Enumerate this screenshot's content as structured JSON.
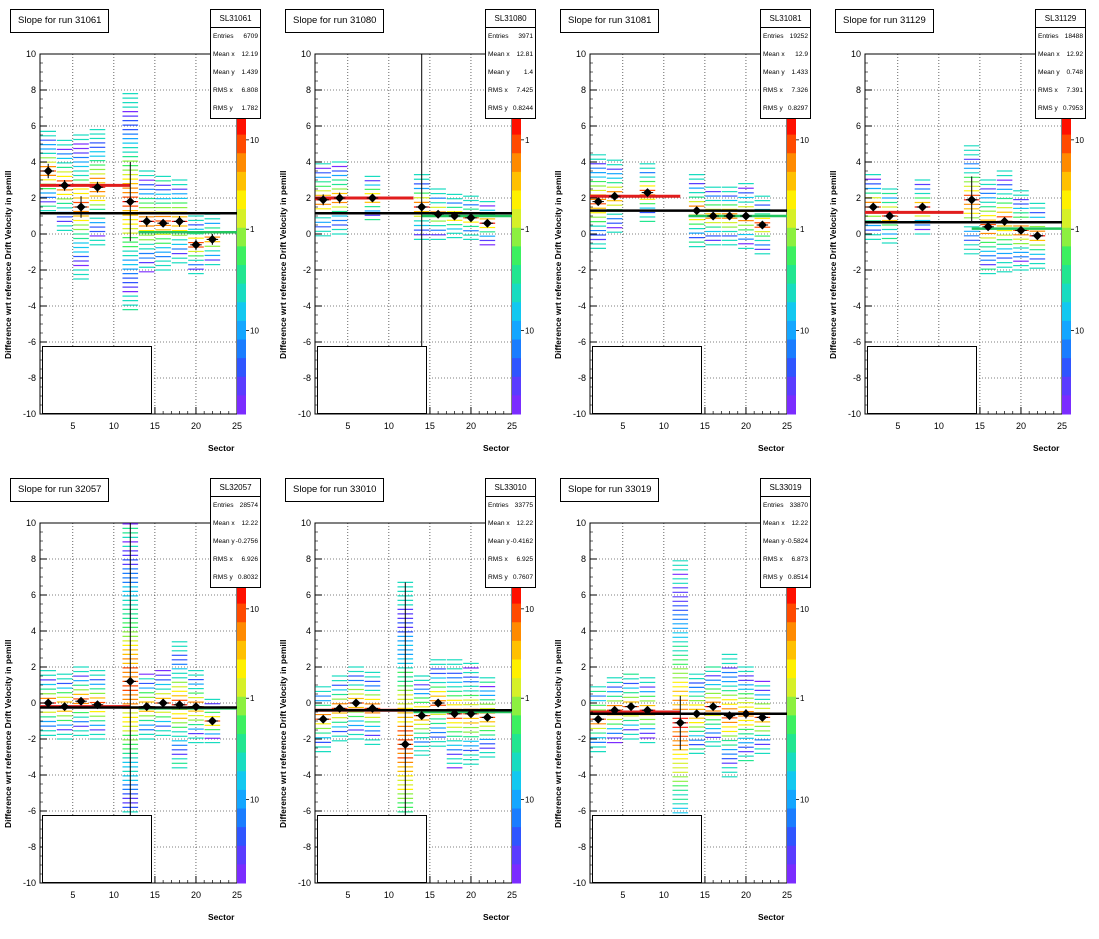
{
  "page": {
    "footer_fragment": ""
  },
  "axis_labels": {
    "y": "Difference wrt reference Drift Velocity in pemill",
    "x": "Sector"
  },
  "colors": {
    "mean_marker": "#000000",
    "fit_black": "#000000",
    "fit_red": "#e11d1d",
    "fit_green": "#22c55e"
  },
  "chart_data": [
    {
      "type": "heatmap",
      "title": "Slope for run 31061",
      "stats": {
        "name": "SL31061",
        "entries": "6709",
        "mean_x": "12.19",
        "mean_y": "1.439",
        "rms_x": "6.808",
        "rms_y": "1.782"
      },
      "xlim": [
        1,
        25
      ],
      "ylim": [
        -10,
        10
      ],
      "xticks": [
        5,
        10,
        15,
        20,
        25
      ],
      "yticks": [
        -10,
        -8,
        -6,
        -4,
        -2,
        0,
        2,
        4,
        6,
        8,
        10
      ],
      "z_ticks": [
        "10",
        "1",
        "10"
      ],
      "sectors": [
        2,
        4,
        6,
        8,
        12,
        14,
        16,
        18,
        20,
        22
      ],
      "mean_y": [
        3.5,
        2.7,
        1.5,
        2.6,
        1.8,
        0.7,
        0.6,
        0.7,
        -0.6,
        -0.3
      ],
      "err_y": [
        0.4,
        0.3,
        0.6,
        0.3,
        2.2,
        0.3,
        0.2,
        0.3,
        0.3,
        0.3
      ],
      "spread": [
        2.2,
        2.5,
        4.0,
        3.2,
        6.0,
        2.8,
        2.6,
        2.3,
        1.6,
        1.4
      ],
      "fit_black": {
        "x": [
          1,
          25
        ],
        "y": [
          1.15,
          1.15
        ]
      },
      "fit_red": {
        "x": [
          1,
          12
        ],
        "y": [
          2.7,
          2.7
        ]
      },
      "fit_green": {
        "x": [
          13,
          25
        ],
        "y": [
          0.1,
          0.1
        ]
      }
    },
    {
      "type": "heatmap",
      "title": "Slope for run 31080",
      "stats": {
        "name": "SL31080",
        "entries": "3971",
        "mean_x": "12.81",
        "mean_y": "1.4",
        "rms_x": "7.425",
        "rms_y": "0.8244"
      },
      "xlim": [
        1,
        25
      ],
      "ylim": [
        -10,
        10
      ],
      "xticks": [
        5,
        10,
        15,
        20,
        25
      ],
      "yticks": [
        -10,
        -8,
        -6,
        -4,
        -2,
        0,
        2,
        4,
        6,
        8,
        10
      ],
      "z_ticks": [
        "1",
        "1",
        "10"
      ],
      "sectors": [
        2,
        4,
        8,
        14,
        16,
        18,
        20,
        22
      ],
      "mean_y": [
        1.9,
        2.0,
        2.0,
        1.5,
        1.1,
        1.0,
        0.9,
        0.6
      ],
      "err_y": [
        0.3,
        0.3,
        0.2,
        8.5,
        0.2,
        0.2,
        0.2,
        0.2
      ],
      "spread": [
        2.0,
        2.0,
        1.2,
        1.8,
        1.4,
        1.2,
        1.2,
        1.2
      ],
      "fit_black": {
        "x": [
          1,
          25
        ],
        "y": [
          1.15,
          1.15
        ]
      },
      "fit_red": {
        "x": [
          1,
          13
        ],
        "y": [
          2.0,
          2.0
        ]
      },
      "fit_green": {
        "x": [
          14,
          25
        ],
        "y": [
          1.0,
          1.0
        ]
      }
    },
    {
      "type": "heatmap",
      "title": "Slope for run 31081",
      "stats": {
        "name": "SL31081",
        "entries": "19252",
        "mean_x": "12.9",
        "mean_y": "1.433",
        "rms_x": "7.326",
        "rms_y": "0.8297"
      },
      "xlim": [
        1,
        25
      ],
      "ylim": [
        -10,
        10
      ],
      "xticks": [
        5,
        10,
        15,
        20,
        25
      ],
      "yticks": [
        -10,
        -8,
        -6,
        -4,
        -2,
        0,
        2,
        4,
        6,
        8,
        10
      ],
      "z_ticks": [
        "10",
        "1",
        "10"
      ],
      "sectors": [
        2,
        4,
        8,
        14,
        16,
        18,
        20,
        22
      ],
      "mean_y": [
        1.8,
        2.1,
        2.3,
        1.3,
        1.0,
        1.0,
        1.0,
        0.5
      ],
      "err_y": [
        0.2,
        0.2,
        0.2,
        0.2,
        0.2,
        0.2,
        0.2,
        0.2
      ],
      "spread": [
        2.6,
        2.0,
        1.6,
        2.0,
        1.6,
        1.6,
        1.8,
        1.6
      ],
      "fit_black": {
        "x": [
          1,
          25
        ],
        "y": [
          1.3,
          1.3
        ]
      },
      "fit_red": {
        "x": [
          1,
          12
        ],
        "y": [
          2.1,
          2.1
        ]
      },
      "fit_green": {
        "x": [
          13,
          25
        ],
        "y": [
          1.0,
          1.0
        ]
      }
    },
    {
      "type": "heatmap",
      "title": "Slope for run 31129",
      "stats": {
        "name": "SL31129",
        "entries": "18488",
        "mean_x": "12.92",
        "mean_y": "0.748",
        "rms_x": "7.391",
        "rms_y": "0.7953"
      },
      "xlim": [
        1,
        25
      ],
      "ylim": [
        -10,
        10
      ],
      "xticks": [
        5,
        10,
        15,
        20,
        25
      ],
      "yticks": [
        -10,
        -8,
        -6,
        -4,
        -2,
        0,
        2,
        4,
        6,
        8,
        10
      ],
      "z_ticks": [
        "10",
        "1",
        "10"
      ],
      "sectors": [
        2,
        4,
        8,
        14,
        16,
        18,
        20,
        22
      ],
      "mean_y": [
        1.5,
        1.0,
        1.5,
        1.9,
        0.4,
        0.7,
        0.2,
        -0.1
      ],
      "err_y": [
        0.2,
        0.2,
        0.2,
        1.3,
        0.2,
        0.2,
        0.2,
        0.2
      ],
      "spread": [
        1.8,
        1.5,
        1.5,
        3.0,
        2.6,
        2.8,
        2.2,
        1.8
      ],
      "fit_black": {
        "x": [
          1,
          25
        ],
        "y": [
          0.65,
          0.65
        ]
      },
      "fit_red": {
        "x": [
          1,
          13
        ],
        "y": [
          1.2,
          1.2
        ]
      },
      "fit_green": {
        "x": [
          14,
          25
        ],
        "y": [
          0.3,
          0.3
        ]
      }
    },
    {
      "type": "heatmap",
      "title": "Slope for run 32057",
      "stats": {
        "name": "SL32057",
        "entries": "28574",
        "mean_x": "12.22",
        "mean_y": "-0.2756",
        "rms_x": "6.926",
        "rms_y": "0.8032"
      },
      "xlim": [
        1,
        25
      ],
      "ylim": [
        -10,
        10
      ],
      "xticks": [
        5,
        10,
        15,
        20,
        25
      ],
      "yticks": [
        -10,
        -8,
        -6,
        -4,
        -2,
        0,
        2,
        4,
        6,
        8,
        10
      ],
      "z_ticks": [
        "10",
        "1",
        "10"
      ],
      "sectors": [
        2,
        4,
        6,
        8,
        12,
        14,
        16,
        18,
        20,
        22
      ],
      "mean_y": [
        0.0,
        -0.2,
        0.1,
        -0.1,
        1.2,
        -0.2,
        0.0,
        -0.1,
        -0.2,
        -1.0
      ],
      "err_y": [
        0.2,
        0.2,
        0.2,
        0.2,
        9.0,
        0.2,
        0.2,
        0.2,
        0.2,
        0.2
      ],
      "spread": [
        1.8,
        1.8,
        1.9,
        1.9,
        9.0,
        1.8,
        1.8,
        3.5,
        2.0,
        1.2
      ],
      "fit_black": {
        "x": [
          1,
          25
        ],
        "y": [
          -0.25,
          -0.25
        ]
      },
      "fit_red": {
        "x": [
          1,
          12
        ],
        "y": [
          -0.2,
          -0.2
        ]
      },
      "fit_green": {
        "x": [
          13,
          25
        ],
        "y": [
          -0.3,
          -0.3
        ]
      }
    },
    {
      "type": "heatmap",
      "title": "Slope for run 33010",
      "stats": {
        "name": "SL33010",
        "entries": "33775",
        "mean_x": "12.22",
        "mean_y": "-0.4162",
        "rms_x": "6.925",
        "rms_y": "0.7607"
      },
      "xlim": [
        1,
        25
      ],
      "ylim": [
        -10,
        10
      ],
      "xticks": [
        5,
        10,
        15,
        20,
        25
      ],
      "yticks": [
        -10,
        -8,
        -6,
        -4,
        -2,
        0,
        2,
        4,
        6,
        8,
        10
      ],
      "z_ticks": [
        "10",
        "1",
        "10"
      ],
      "sectors": [
        2,
        4,
        6,
        8,
        12,
        14,
        16,
        18,
        20,
        22
      ],
      "mean_y": [
        -0.9,
        -0.3,
        0.0,
        -0.3,
        -2.3,
        -0.7,
        0.0,
        -0.6,
        -0.6,
        -0.8
      ],
      "err_y": [
        0.2,
        0.2,
        0.2,
        0.2,
        9.0,
        0.2,
        0.2,
        0.2,
        0.2,
        0.2
      ],
      "spread": [
        1.8,
        1.8,
        2.0,
        2.0,
        9.0,
        2.2,
        2.4,
        3.0,
        2.8,
        2.2
      ],
      "fit_black": {
        "x": [
          1,
          25
        ],
        "y": [
          -0.4,
          -0.4
        ]
      },
      "fit_red": {
        "x": [
          1,
          12
        ],
        "y": [
          -0.4,
          -0.4
        ]
      },
      "fit_green": {
        "x": [
          13,
          25
        ],
        "y": [
          -0.5,
          -0.5
        ]
      }
    },
    {
      "type": "heatmap",
      "title": "Slope for run 33019",
      "stats": {
        "name": "SL33019",
        "entries": "33870",
        "mean_x": "12.22",
        "mean_y": "-0.5824",
        "rms_x": "6.873",
        "rms_y": "0.8514"
      },
      "xlim": [
        1,
        25
      ],
      "ylim": [
        -10,
        10
      ],
      "xticks": [
        5,
        10,
        15,
        20,
        25
      ],
      "yticks": [
        -10,
        -8,
        -6,
        -4,
        -2,
        0,
        2,
        4,
        6,
        8,
        10
      ],
      "z_ticks": [
        "10",
        "1",
        "10"
      ],
      "sectors": [
        2,
        4,
        6,
        8,
        12,
        14,
        16,
        18,
        20,
        22
      ],
      "mean_y": [
        -0.9,
        -0.4,
        -0.2,
        -0.4,
        -1.1,
        -0.6,
        -0.2,
        -0.7,
        -0.6,
        -0.8
      ],
      "err_y": [
        0.2,
        0.2,
        0.2,
        0.2,
        1.5,
        0.2,
        0.2,
        0.2,
        0.2,
        0.2
      ],
      "spread": [
        1.8,
        1.8,
        1.8,
        1.8,
        9.0,
        2.2,
        2.2,
        3.4,
        2.6,
        2.0
      ],
      "fit_black": {
        "x": [
          1,
          25
        ],
        "y": [
          -0.6,
          -0.6
        ]
      },
      "fit_red": {
        "x": [
          1,
          12
        ],
        "y": [
          -0.5,
          -0.5
        ]
      },
      "fit_green": {
        "x": [
          13,
          25
        ],
        "y": [
          -0.6,
          -0.6
        ]
      }
    }
  ]
}
